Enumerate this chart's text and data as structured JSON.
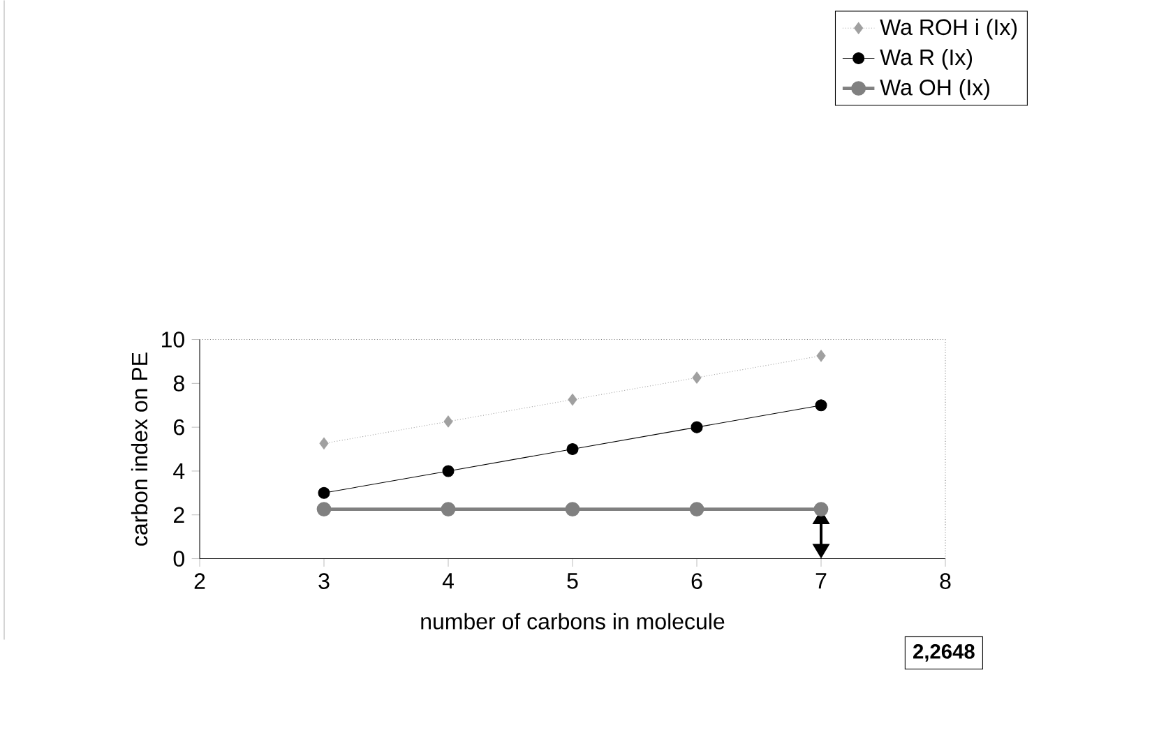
{
  "chart_data": {
    "type": "line",
    "xlabel": "number of carbons in molecule",
    "ylabel": "carbon index on PE",
    "x": [
      3,
      4,
      5,
      6,
      7
    ],
    "series": [
      {
        "name": "Wa ROH i (Ix)",
        "color": "#a0a0a0",
        "values": [
          5.26,
          6.26,
          7.26,
          8.26,
          9.26
        ],
        "marker": "diamond",
        "line_style": "dotted"
      },
      {
        "name": "Wa R (Ix)",
        "color": "#000000",
        "values": [
          3,
          4,
          5,
          6,
          7
        ],
        "marker": "circle",
        "line_style": "solid"
      },
      {
        "name": "Wa OH (Ix)",
        "color": "#808080",
        "values": [
          2.26,
          2.26,
          2.26,
          2.26,
          2.26
        ],
        "marker": "circle",
        "line_style": "solid"
      }
    ],
    "xlim": [
      2,
      8
    ],
    "ylim": [
      0,
      10
    ],
    "xticks": [
      2,
      3,
      4,
      5,
      6,
      7,
      8
    ],
    "yticks": [
      0,
      2,
      4,
      6,
      8,
      10
    ],
    "annotations": [
      "2,2648"
    ],
    "legend": "top right",
    "grid": false
  }
}
